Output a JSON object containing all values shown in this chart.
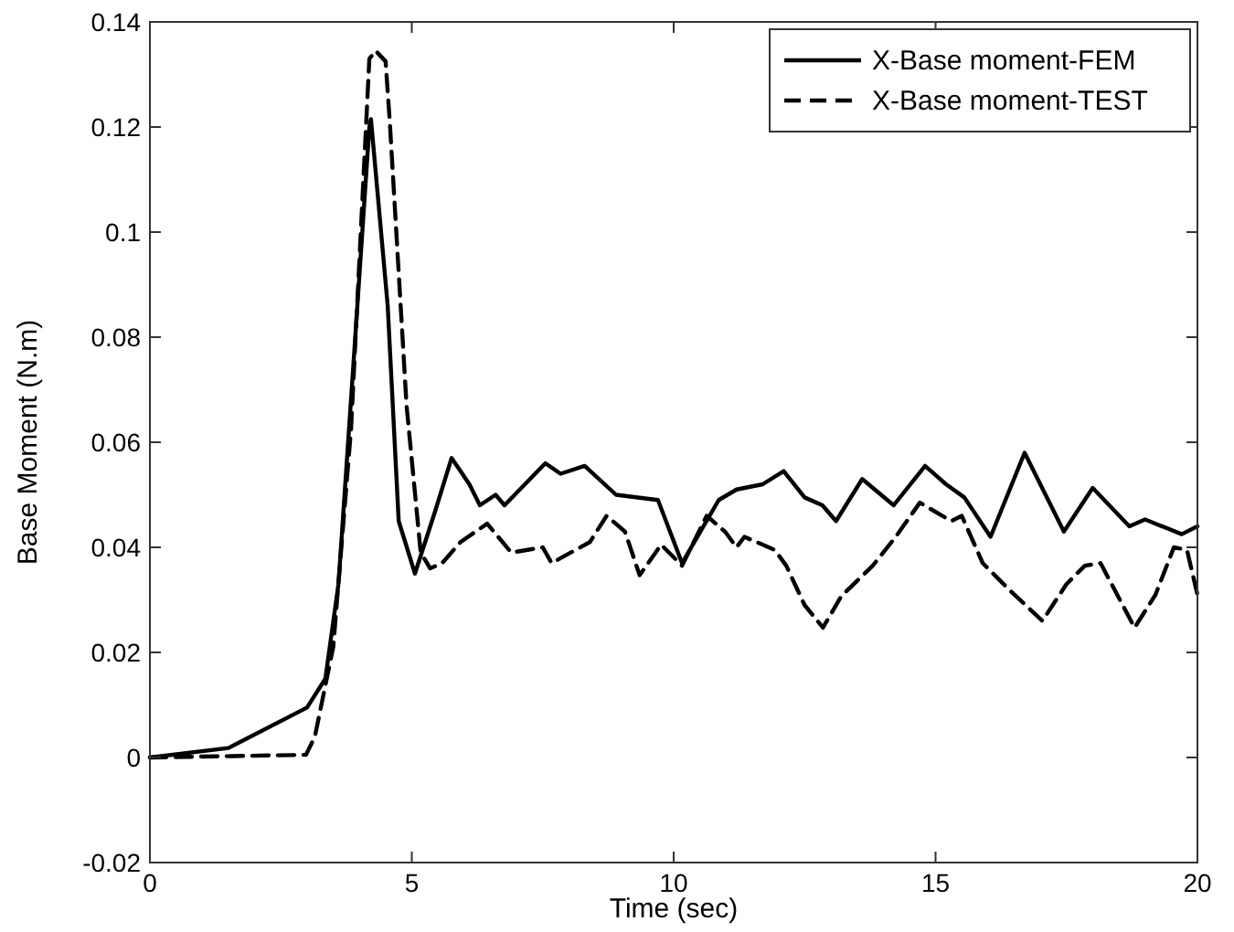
{
  "chart_data": {
    "type": "line",
    "xlabel": "Time (sec)",
    "ylabel": "Base Moment (N.m)",
    "xlim": [
      0,
      20
    ],
    "ylim": [
      -0.02,
      0.14
    ],
    "xticks": [
      0,
      5,
      10,
      15,
      20
    ],
    "yticks": [
      -0.02,
      0,
      0.02,
      0.04,
      0.06,
      0.08,
      0.1,
      0.12,
      0.14
    ],
    "legend": "top right",
    "grid": false,
    "series": [
      {
        "name": "X-Base moment-FEM",
        "color": "#000000",
        "line_style": "solid",
        "x": [
          0,
          1.5,
          3.0,
          3.35,
          3.6,
          3.88,
          4.19,
          4.22,
          4.54,
          4.75,
          5.06,
          5.45,
          5.76,
          6.1,
          6.3,
          6.6,
          6.77,
          7.55,
          7.84,
          8.3,
          8.9,
          9.7,
          10.16,
          10.86,
          11.2,
          11.7,
          12.1,
          12.5,
          12.84,
          13.1,
          13.6,
          14.2,
          14.8,
          15.2,
          15.55,
          16.05,
          16.7,
          17.45,
          18.0,
          18.7,
          19.0,
          19.7,
          20
        ],
        "values": [
          0,
          0.0018,
          0.0095,
          0.015,
          0.033,
          0.074,
          0.12,
          0.1215,
          0.086,
          0.045,
          0.035,
          0.047,
          0.057,
          0.052,
          0.048,
          0.05,
          0.048,
          0.056,
          0.054,
          0.0555,
          0.05,
          0.049,
          0.037,
          0.049,
          0.051,
          0.052,
          0.0545,
          0.0495,
          0.048,
          0.045,
          0.053,
          0.048,
          0.0555,
          0.052,
          0.0495,
          0.042,
          0.058,
          0.043,
          0.0513,
          0.044,
          0.0453,
          0.0425,
          0.044
        ]
      },
      {
        "name": "X-Base moment-TEST",
        "color": "#000000",
        "line_style": "dashed",
        "x": [
          0,
          2.98,
          3.15,
          3.5,
          3.84,
          4.19,
          4.31,
          4.5,
          4.58,
          4.9,
          5.17,
          5.35,
          5.58,
          5.93,
          6.44,
          6.9,
          7.5,
          7.67,
          8.4,
          8.72,
          9.07,
          9.35,
          9.76,
          10.16,
          10.63,
          10.98,
          11.2,
          11.35,
          11.93,
          12.15,
          12.5,
          12.85,
          13.2,
          13.8,
          14.24,
          14.7,
          15.3,
          15.5,
          15.9,
          16.45,
          17.04,
          17.5,
          17.85,
          18.15,
          18.8,
          19.2,
          19.55,
          19.8,
          20
        ],
        "values": [
          0,
          0.0005,
          0.004,
          0.021,
          0.0625,
          0.133,
          0.1345,
          0.1325,
          0.121,
          0.067,
          0.039,
          0.036,
          0.037,
          0.041,
          0.0445,
          0.039,
          0.04,
          0.037,
          0.041,
          0.046,
          0.043,
          0.0347,
          0.0405,
          0.0365,
          0.046,
          0.043,
          0.04,
          0.042,
          0.0395,
          0.0365,
          0.029,
          0.0247,
          0.0307,
          0.0365,
          0.042,
          0.0485,
          0.045,
          0.046,
          0.037,
          0.0315,
          0.026,
          0.033,
          0.0365,
          0.037,
          0.0247,
          0.031,
          0.04,
          0.0395,
          0.031
        ]
      }
    ]
  }
}
